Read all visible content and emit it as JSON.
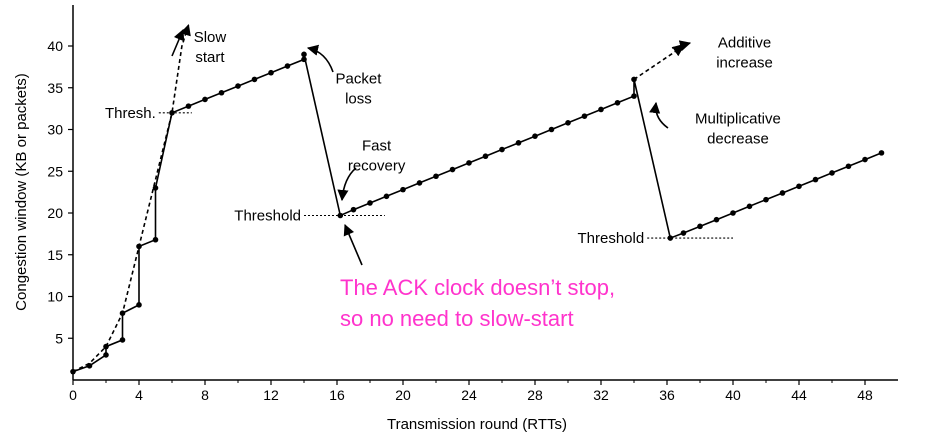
{
  "chart_data": {
    "type": "line",
    "xlabel": "Transmission round (RTTs)",
    "ylabel": "Congestion window  (KB or packets)",
    "xlim": [
      0,
      49
    ],
    "ylim": [
      0,
      43
    ],
    "x_ticks": [
      0,
      4,
      8,
      12,
      16,
      20,
      24,
      28,
      32,
      36,
      40,
      44,
      48
    ],
    "y_ticks": [
      5,
      10,
      15,
      20,
      25,
      30,
      35,
      40
    ],
    "grid": false,
    "series": [
      {
        "style": "solid-with-markers",
        "points": [
          [
            0,
            1
          ],
          [
            1,
            1.7
          ],
          [
            2,
            3
          ],
          [
            2,
            4
          ],
          [
            3,
            4.8
          ],
          [
            3,
            8
          ],
          [
            4,
            9
          ],
          [
            4,
            16
          ],
          [
            5,
            16.8
          ],
          [
            5,
            23
          ],
          [
            6,
            32
          ],
          [
            7,
            32.8
          ],
          [
            8,
            33.6
          ],
          [
            9,
            34.4
          ],
          [
            10,
            35.2
          ],
          [
            11,
            36
          ],
          [
            12,
            36.8
          ],
          [
            13,
            37.6
          ],
          [
            14,
            38.4
          ],
          [
            14,
            39
          ],
          [
            16.2,
            19.7
          ],
          [
            17,
            20.4
          ],
          [
            18,
            21.2
          ],
          [
            19,
            22
          ],
          [
            20,
            22.8
          ],
          [
            21,
            23.6
          ],
          [
            22,
            24.4
          ],
          [
            23,
            25.2
          ],
          [
            24,
            26
          ],
          [
            25,
            26.8
          ],
          [
            26,
            27.6
          ],
          [
            27,
            28.4
          ],
          [
            28,
            29.2
          ],
          [
            29,
            30
          ],
          [
            30,
            30.8
          ],
          [
            31,
            31.6
          ],
          [
            32,
            32.4
          ],
          [
            33,
            33.2
          ],
          [
            34,
            34
          ],
          [
            34,
            36
          ],
          [
            36.2,
            17
          ],
          [
            37,
            17.6
          ],
          [
            38,
            18.4
          ],
          [
            39,
            19.2
          ],
          [
            40,
            20
          ],
          [
            41,
            20.8
          ],
          [
            42,
            21.6
          ],
          [
            43,
            22.4
          ],
          [
            44,
            23.2
          ],
          [
            45,
            24
          ],
          [
            46,
            24.8
          ],
          [
            47,
            25.6
          ],
          [
            48,
            26.4
          ],
          [
            49,
            27.2
          ]
        ]
      },
      {
        "style": "dashed",
        "points": [
          [
            0,
            1
          ],
          [
            1,
            2
          ],
          [
            2,
            4
          ],
          [
            3,
            8
          ],
          [
            4,
            16
          ],
          [
            5,
            24
          ],
          [
            6,
            32
          ],
          [
            6.6,
            40
          ],
          [
            7,
            42.5
          ]
        ]
      },
      {
        "style": "dashed",
        "points": [
          [
            34,
            36
          ],
          [
            37,
            40
          ]
        ]
      }
    ],
    "threshold_lines": [
      {
        "label": "Thresh.",
        "y": 32,
        "x_from": 5.2,
        "x_to": 7.2
      },
      {
        "label": "Threshold",
        "y": 19.7,
        "x_from": 14,
        "x_to": 18.9
      },
      {
        "label": "Threshold",
        "y": 17,
        "x_from": 34.8,
        "x_to": 40
      }
    ],
    "annotations": [
      {
        "lines": [
          "Slow",
          "start"
        ],
        "x": 8.3,
        "y": 40.5
      },
      {
        "lines": [
          "Packet",
          "loss"
        ],
        "x": 17.3,
        "y": 35.5
      },
      {
        "lines": [
          "Fast",
          "recovery"
        ],
        "x": 18.4,
        "y": 27.5
      },
      {
        "lines": [
          "Additive",
          "increase"
        ],
        "x": 40.7,
        "y": 39.8
      },
      {
        "lines": [
          "Multiplicative",
          "decrease"
        ],
        "x": 40.3,
        "y": 30.7
      }
    ],
    "callout": {
      "lines": [
        "The ACK clock doesn’t stop,",
        "so no need to slow-start"
      ],
      "color": "#ff33cc"
    }
  }
}
